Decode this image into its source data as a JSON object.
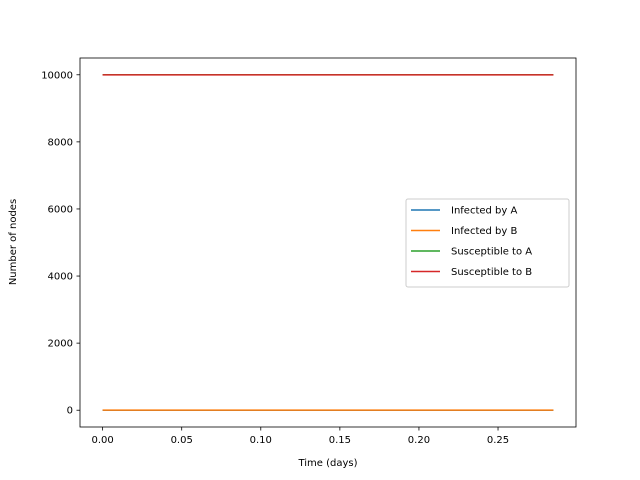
{
  "chart_data": {
    "type": "line",
    "title": "",
    "xlabel": "Time (days)",
    "ylabel": "Number of nodes",
    "xlim": [
      -0.0143,
      0.2993
    ],
    "ylim": [
      -500,
      10500
    ],
    "xticks": [
      0.0,
      0.05,
      0.1,
      0.15,
      0.2,
      0.25
    ],
    "xtick_labels": [
      "0.00",
      "0.05",
      "0.10",
      "0.15",
      "0.20",
      "0.25"
    ],
    "yticks": [
      0,
      2000,
      4000,
      6000,
      8000,
      10000
    ],
    "ytick_labels": [
      "0",
      "2000",
      "4000",
      "6000",
      "8000",
      "10000"
    ],
    "grid": false,
    "legend_position": "center-right",
    "series": [
      {
        "name": "Infected by A",
        "color": "#1f77b4",
        "x": [
          0.0,
          0.285
        ],
        "y": [
          0,
          0
        ]
      },
      {
        "name": "Infected by B",
        "color": "#ff7f0e",
        "x": [
          0.0,
          0.285
        ],
        "y": [
          2,
          2
        ]
      },
      {
        "name": "Susceptible to A",
        "color": "#2ca02c",
        "x": [
          0.0,
          0.285
        ],
        "y": [
          10000,
          10000
        ]
      },
      {
        "name": "Susceptible to B",
        "color": "#d62728",
        "x": [
          0.0,
          0.285
        ],
        "y": [
          9998,
          9998
        ]
      }
    ]
  }
}
